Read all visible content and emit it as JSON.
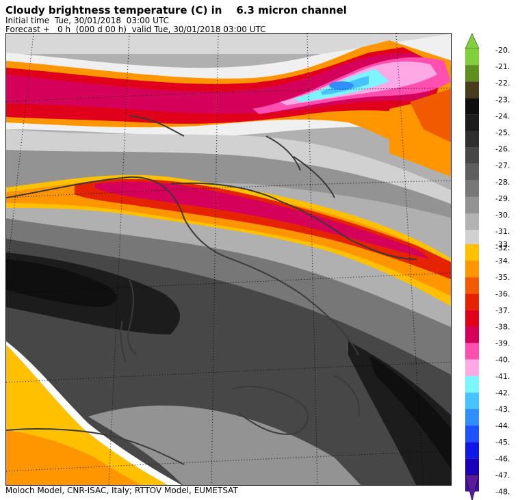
{
  "header": {
    "title": "Cloudy brightness temperature (C) in    6.3 micron channel",
    "initial_time": "Initial time  Tue, 30/01/2018  03:00 UTC",
    "forecast": "Forecast +   0 h  (000 d 00 h)  valid Tue, 30/01/2018 03:00 UTC"
  },
  "footer": {
    "credit": "Moloch Model, CNR-ISAC, Italy; RTTOV Model, EUMETSAT"
  },
  "legend": {
    "upper": [
      {
        "label": "-20.",
        "color": "#7fd03a"
      },
      {
        "label": "-21.",
        "color": "#5f8f1f"
      },
      {
        "label": "-22.",
        "color": "#4a3c1a"
      },
      {
        "label": "-23.",
        "color": "#0f0f0f"
      },
      {
        "label": "-24.",
        "color": "#1c1c1c"
      },
      {
        "label": "-25.",
        "color": "#2f2f2f"
      },
      {
        "label": "-26.",
        "color": "#474747"
      },
      {
        "label": "-27.",
        "color": "#5e5e5e"
      },
      {
        "label": "-28.",
        "color": "#777777"
      },
      {
        "label": "-29.",
        "color": "#939393"
      },
      {
        "label": "-30.",
        "color": "#b3b3b3"
      },
      {
        "label": "-31.",
        "color": "#d1d1d1"
      },
      {
        "label": "-32.",
        "color": "#ececec"
      }
    ],
    "lower": [
      {
        "label": "-33.",
        "color": "#ffc000"
      },
      {
        "label": "-34.",
        "color": "#ff9600"
      },
      {
        "label": "-35.",
        "color": "#f25a00"
      },
      {
        "label": "-36.",
        "color": "#e52300"
      },
      {
        "label": "-37.",
        "color": "#e0001c"
      },
      {
        "label": "-38.",
        "color": "#d4005a"
      },
      {
        "label": "-39.",
        "color": "#ff4fb0"
      },
      {
        "label": "-40.",
        "color": "#ffa8e6"
      },
      {
        "label": "-41.",
        "color": "#7cf5ff"
      },
      {
        "label": "-42.",
        "color": "#47c4ff"
      },
      {
        "label": "-43.",
        "color": "#2f8fff"
      },
      {
        "label": "-44.",
        "color": "#1c52ff"
      },
      {
        "label": "-45.",
        "color": "#0f18e6"
      },
      {
        "label": "-46.",
        "color": "#1a00b8"
      },
      {
        "label": "-47.",
        "color": "#3a0ca3"
      },
      {
        "label": "-48.",
        "color": "#5a1a9a"
      }
    ]
  }
}
